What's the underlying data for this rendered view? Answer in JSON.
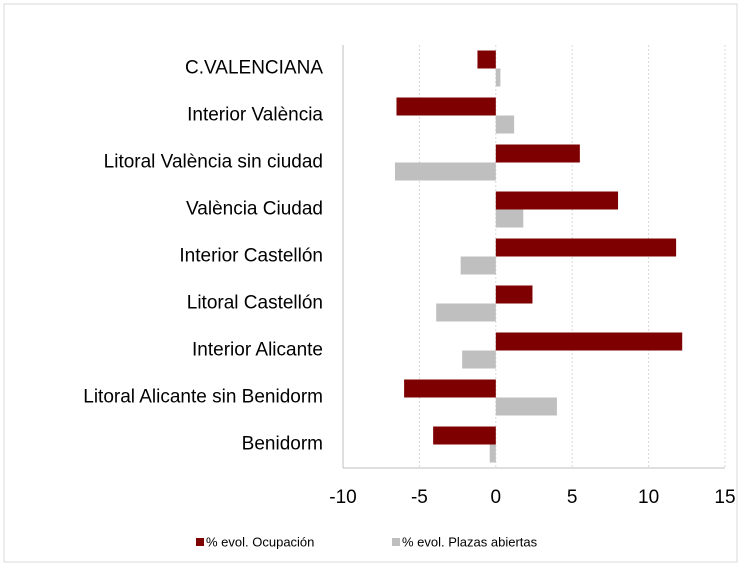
{
  "chart_data": {
    "type": "bar",
    "orientation": "horizontal",
    "categories": [
      "C.VALENCIANA",
      "Interior València",
      "Litoral València sin ciudad",
      "València Ciudad",
      "Interior Castellón",
      "Litoral Castellón",
      "Interior Alicante",
      "Litoral Alicante sin Benidorm",
      "Benidorm"
    ],
    "series": [
      {
        "name": "% evol. Ocupación",
        "color": "#7f0000",
        "values": [
          -1.2,
          -6.5,
          5.5,
          8.0,
          11.8,
          2.4,
          12.2,
          -6.0,
          -4.1
        ]
      },
      {
        "name": "% evol. Plazas abiertas",
        "color": "#bfbfbf",
        "values": [
          0.3,
          1.2,
          -6.6,
          1.8,
          -2.3,
          -3.9,
          -2.2,
          4.0,
          -0.4
        ]
      }
    ],
    "xlim": [
      -10,
      15
    ],
    "xticks": [
      -10,
      -5,
      0,
      5,
      10,
      15
    ],
    "grid": true,
    "legend": "bottom"
  }
}
